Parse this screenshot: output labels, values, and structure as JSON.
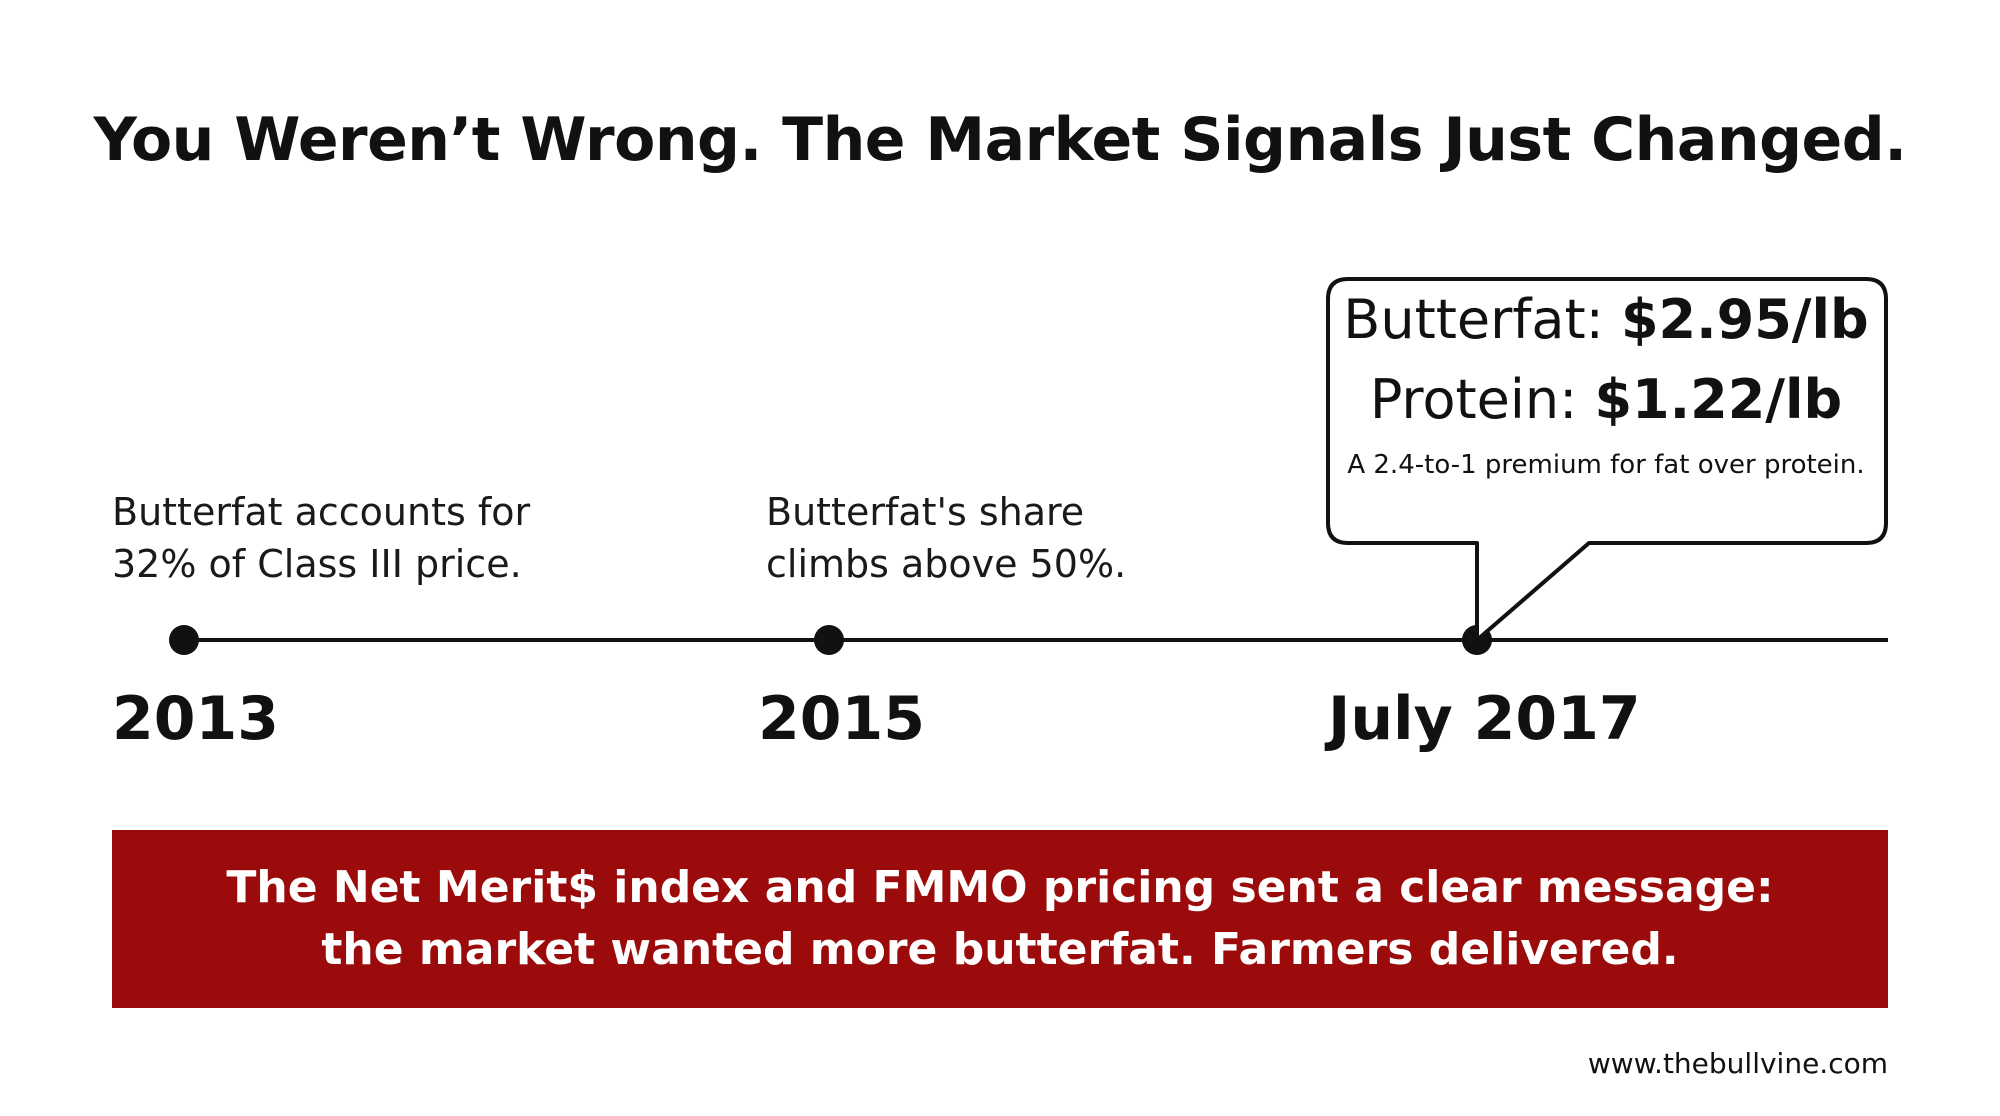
{
  "title": "You Weren’t Wrong. The Market Signals Just Changed.",
  "events": [
    {
      "year": "2013",
      "text_lines": [
        "Butterfat accounts for",
        "32% of Class III price."
      ]
    },
    {
      "year": "2015",
      "text_lines": [
        "Butterfat's share",
        "climbs above 50%."
      ]
    },
    {
      "year": "July 2017",
      "callout": {
        "rows": [
          {
            "label": "Butterfat: ",
            "value": "$2.95/lb"
          },
          {
            "label": "Protein: ",
            "value": "$1.22/lb"
          }
        ],
        "note": "A 2.4-to-1 premium for fat over protein."
      }
    }
  ],
  "banner": {
    "lines": [
      "The Net Merit$ index and FMMO pricing sent a clear message:",
      "the market wanted more butterfat. Farmers delivered."
    ],
    "background_color": "#9b0b0b",
    "text_color": "#ffffff"
  },
  "footer": {
    "url": "www.thebullvine.com"
  }
}
